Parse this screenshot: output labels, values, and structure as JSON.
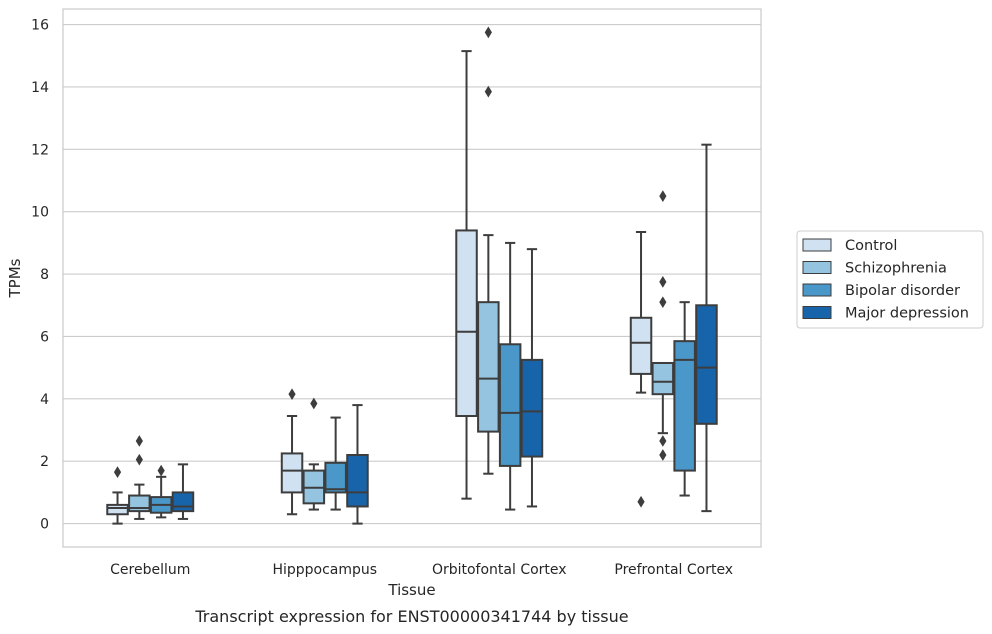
{
  "chart_data": {
    "type": "box",
    "caption": "Transcript expression for ENST00000341744 by tissue",
    "xlabel": "Tissue",
    "ylabel": "TPMs",
    "ylim": [
      -0.75,
      16.5
    ],
    "yticks": [
      0,
      2,
      4,
      6,
      8,
      10,
      12,
      14,
      16
    ],
    "grid": true,
    "legend_position": "right",
    "categories": [
      "Cerebellum",
      "Hipppocampus",
      "Orbitofontal Cortex",
      "Prefrontal Cortex"
    ],
    "series": [
      {
        "name": "Control",
        "color": "#d0e1f2",
        "boxes": [
          {
            "whisker_low": 0.0,
            "q1": 0.3,
            "median": 0.5,
            "q3": 0.6,
            "whisker_high": 1.0,
            "outliers": [
              1.65
            ]
          },
          {
            "whisker_low": 0.3,
            "q1": 1.0,
            "median": 1.7,
            "q3": 2.25,
            "whisker_high": 3.45,
            "outliers": [
              4.15
            ]
          },
          {
            "whisker_low": 0.8,
            "q1": 3.45,
            "median": 6.15,
            "q3": 9.4,
            "whisker_high": 15.15,
            "outliers": []
          },
          {
            "whisker_low": 4.2,
            "q1": 4.8,
            "median": 5.8,
            "q3": 6.6,
            "whisker_high": 9.35,
            "outliers": [
              0.7
            ]
          }
        ]
      },
      {
        "name": "Schizophrenia",
        "color": "#94c4df",
        "boxes": [
          {
            "whisker_low": 0.15,
            "q1": 0.4,
            "median": 0.5,
            "q3": 0.9,
            "whisker_high": 1.25,
            "outliers": [
              2.05,
              2.65
            ]
          },
          {
            "whisker_low": 0.45,
            "q1": 0.65,
            "median": 1.15,
            "q3": 1.7,
            "whisker_high": 1.9,
            "outliers": [
              3.85
            ]
          },
          {
            "whisker_low": 1.6,
            "q1": 2.95,
            "median": 4.65,
            "q3": 7.1,
            "whisker_high": 9.25,
            "outliers": [
              13.85,
              15.75
            ]
          },
          {
            "whisker_low": 2.9,
            "q1": 4.15,
            "median": 4.55,
            "q3": 5.15,
            "whisker_high": 5.15,
            "outliers": [
              2.2,
              2.65,
              7.1,
              7.75,
              10.5
            ]
          }
        ]
      },
      {
        "name": "Bipolar disorder",
        "color": "#4a98c9",
        "boxes": [
          {
            "whisker_low": 0.2,
            "q1": 0.35,
            "median": 0.6,
            "q3": 0.85,
            "whisker_high": 1.5,
            "outliers": [
              1.7
            ]
          },
          {
            "whisker_low": 0.45,
            "q1": 1.0,
            "median": 1.1,
            "q3": 1.95,
            "whisker_high": 3.4,
            "outliers": []
          },
          {
            "whisker_low": 0.45,
            "q1": 1.85,
            "median": 3.55,
            "q3": 5.75,
            "whisker_high": 9.0,
            "outliers": []
          },
          {
            "whisker_low": 0.9,
            "q1": 1.7,
            "median": 5.25,
            "q3": 5.85,
            "whisker_high": 7.1,
            "outliers": []
          }
        ]
      },
      {
        "name": "Major depression",
        "color": "#1764ab",
        "boxes": [
          {
            "whisker_low": 0.15,
            "q1": 0.4,
            "median": 0.55,
            "q3": 1.0,
            "whisker_high": 1.9,
            "outliers": []
          },
          {
            "whisker_low": 0.0,
            "q1": 0.55,
            "median": 1.0,
            "q3": 2.2,
            "whisker_high": 3.8,
            "outliers": []
          },
          {
            "whisker_low": 0.55,
            "q1": 2.15,
            "median": 3.6,
            "q3": 5.25,
            "whisker_high": 8.8,
            "outliers": []
          },
          {
            "whisker_low": 0.4,
            "q1": 3.2,
            "median": 5.0,
            "q3": 7.0,
            "whisker_high": 12.15,
            "outliers": []
          }
        ]
      }
    ]
  }
}
